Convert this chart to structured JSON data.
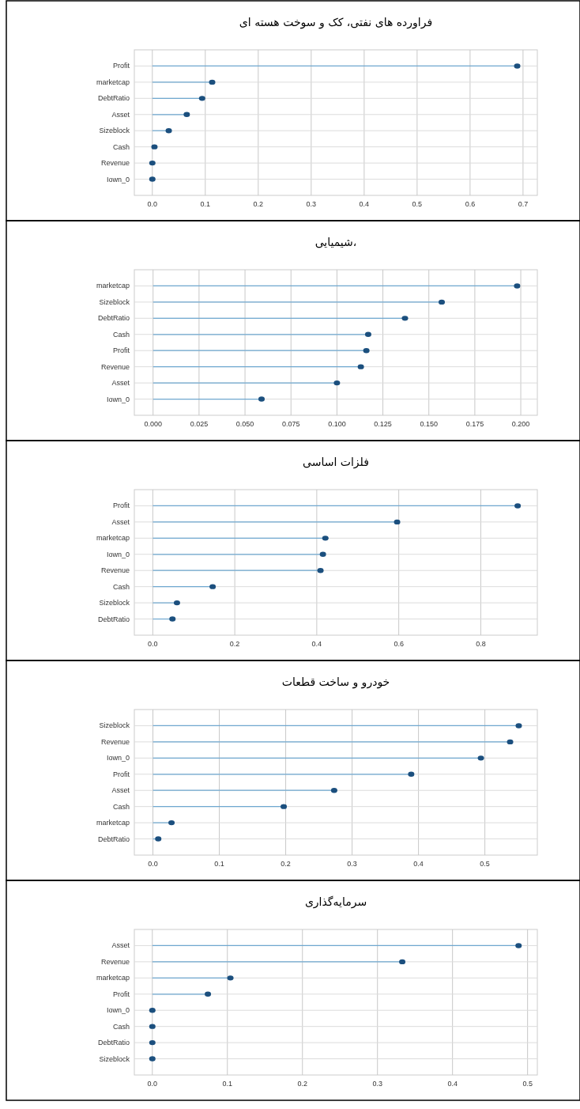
{
  "chart_data": [
    {
      "type": "lollipop",
      "orientation": "horizontal",
      "title": "فراورده های نفتی، کک و سوخت هسته ای",
      "categories": [
        "Profit",
        "marketcap",
        "DebtRatio",
        "Asset",
        "Sizeblock",
        "Cash",
        "Revenue",
        "Iown_0"
      ],
      "values": [
        0.689,
        0.113,
        0.094,
        0.065,
        0.031,
        0.004,
        0.0,
        0.0
      ],
      "color": "#1b4f7e",
      "xlim": [
        -0.034,
        0.727
      ],
      "xticks": [
        {
          "value": 0,
          "label": "0.0"
        },
        {
          "value": 0.1,
          "label": "0.1"
        },
        {
          "value": 0.2,
          "label": "0.2"
        },
        {
          "value": 0.3,
          "label": "0.3"
        },
        {
          "value": 0.4,
          "label": "0.4"
        },
        {
          "value": 0.5,
          "label": "0.5"
        },
        {
          "value": 0.6,
          "label": "0.6"
        },
        {
          "value": 0.7,
          "label": "0.7"
        }
      ],
      "grid": true
    },
    {
      "type": "lollipop",
      "orientation": "horizontal",
      "title": "شیمیایی،",
      "categories": [
        "marketcap",
        "Sizeblock",
        "DebtRatio",
        "Cash",
        "Profit",
        "Revenue",
        "Asset",
        "Iown_0"
      ],
      "values": [
        0.198,
        0.157,
        0.137,
        0.117,
        0.116,
        0.113,
        0.1,
        0.059
      ],
      "color": "#1b4f7e",
      "xlim": [
        -0.0102,
        0.209
      ],
      "xticks": [
        {
          "value": 0,
          "label": "0.000"
        },
        {
          "value": 0.025,
          "label": "0.025"
        },
        {
          "value": 0.05,
          "label": "0.050"
        },
        {
          "value": 0.075,
          "label": "0.075"
        },
        {
          "value": 0.1,
          "label": "0.100"
        },
        {
          "value": 0.125,
          "label": "0.125"
        },
        {
          "value": 0.15,
          "label": "0.150"
        },
        {
          "value": 0.175,
          "label": "0.175"
        },
        {
          "value": 0.2,
          "label": "0.200"
        }
      ],
      "grid": true
    },
    {
      "type": "lollipop",
      "orientation": "horizontal",
      "title": "فلزات اساسی",
      "categories": [
        "Profit",
        "Asset",
        "marketcap",
        "Iown_0",
        "Revenue",
        "Cash",
        "Sizeblock",
        "DebtRatio"
      ],
      "values": [
        0.89,
        0.596,
        0.421,
        0.415,
        0.409,
        0.146,
        0.059,
        0.048
      ],
      "color": "#1b4f7e",
      "xlim": [
        -0.045,
        0.938
      ],
      "xticks": [
        {
          "value": 0,
          "label": "0.0"
        },
        {
          "value": 0.2,
          "label": "0.2"
        },
        {
          "value": 0.4,
          "label": "0.4"
        },
        {
          "value": 0.6,
          "label": "0.6"
        },
        {
          "value": 0.8,
          "label": "0.8"
        }
      ],
      "grid": true
    },
    {
      "type": "lollipop",
      "orientation": "horizontal",
      "title": "خودرو و ساخت قطعات",
      "categories": [
        "Sizeblock",
        "Revenue",
        "Iown_0",
        "Profit",
        "Asset",
        "Cash",
        "marketcap",
        "DebtRatio"
      ],
      "values": [
        0.551,
        0.538,
        0.494,
        0.389,
        0.273,
        0.197,
        0.028,
        0.008
      ],
      "color": "#1b4f7e",
      "xlim": [
        -0.028,
        0.579
      ],
      "xticks": [
        {
          "value": 0,
          "label": "0.0"
        },
        {
          "value": 0.1,
          "label": "0.1"
        },
        {
          "value": 0.2,
          "label": "0.2"
        },
        {
          "value": 0.3,
          "label": "0.3"
        },
        {
          "value": 0.4,
          "label": "0.4"
        },
        {
          "value": 0.5,
          "label": "0.5"
        }
      ],
      "grid": true
    },
    {
      "type": "lollipop",
      "orientation": "horizontal",
      "title": "سرمایه‌گذاری",
      "categories": [
        "Asset",
        "Revenue",
        "marketcap",
        "Profit",
        "Iown_0",
        "Cash",
        "DebtRatio",
        "Sizeblock"
      ],
      "values": [
        0.488,
        0.333,
        0.104,
        0.074,
        0.0,
        0.0,
        0.0,
        0.0
      ],
      "color": "#1b4f7e",
      "xlim": [
        -0.024,
        0.513
      ],
      "xticks": [
        {
          "value": 0,
          "label": "0.0"
        },
        {
          "value": 0.1,
          "label": "0.1"
        },
        {
          "value": 0.2,
          "label": "0.2"
        },
        {
          "value": 0.3,
          "label": "0.3"
        },
        {
          "value": 0.4,
          "label": "0.4"
        },
        {
          "value": 0.5,
          "label": "0.5"
        }
      ],
      "grid": true
    }
  ]
}
